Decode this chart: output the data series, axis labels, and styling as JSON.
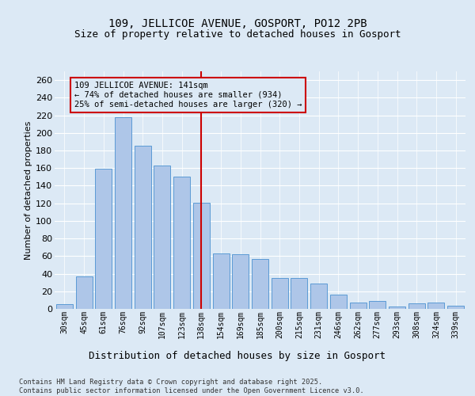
{
  "title1": "109, JELLICOE AVENUE, GOSPORT, PO12 2PB",
  "title2": "Size of property relative to detached houses in Gosport",
  "xlabel": "Distribution of detached houses by size in Gosport",
  "ylabel": "Number of detached properties",
  "categories": [
    "30sqm",
    "45sqm",
    "61sqm",
    "76sqm",
    "92sqm",
    "107sqm",
    "123sqm",
    "138sqm",
    "154sqm",
    "169sqm",
    "185sqm",
    "200sqm",
    "215sqm",
    "231sqm",
    "246sqm",
    "262sqm",
    "277sqm",
    "293sqm",
    "308sqm",
    "324sqm",
    "339sqm"
  ],
  "values": [
    5,
    37,
    159,
    218,
    185,
    163,
    150,
    121,
    63,
    62,
    57,
    35,
    35,
    29,
    16,
    7,
    9,
    3,
    6,
    7,
    4
  ],
  "bar_color": "#aec6e8",
  "bar_edge_color": "#5b9bd5",
  "vline_index": 7,
  "vline_color": "#cc0000",
  "annotation_text": "109 JELLICOE AVENUE: 141sqm\n← 74% of detached houses are smaller (934)\n25% of semi-detached houses are larger (320) →",
  "annotation_fontsize": 7.5,
  "ylim": [
    0,
    270
  ],
  "yticks": [
    0,
    20,
    40,
    60,
    80,
    100,
    120,
    140,
    160,
    180,
    200,
    220,
    240,
    260
  ],
  "footer": "Contains HM Land Registry data © Crown copyright and database right 2025.\nContains public sector information licensed under the Open Government Licence v3.0.",
  "bg_color": "#dce9f5",
  "grid_color": "#ffffff",
  "title1_fontsize": 10,
  "title2_fontsize": 9,
  "ylabel_fontsize": 8,
  "xlabel_fontsize": 9,
  "ytick_fontsize": 8,
  "xtick_fontsize": 7
}
